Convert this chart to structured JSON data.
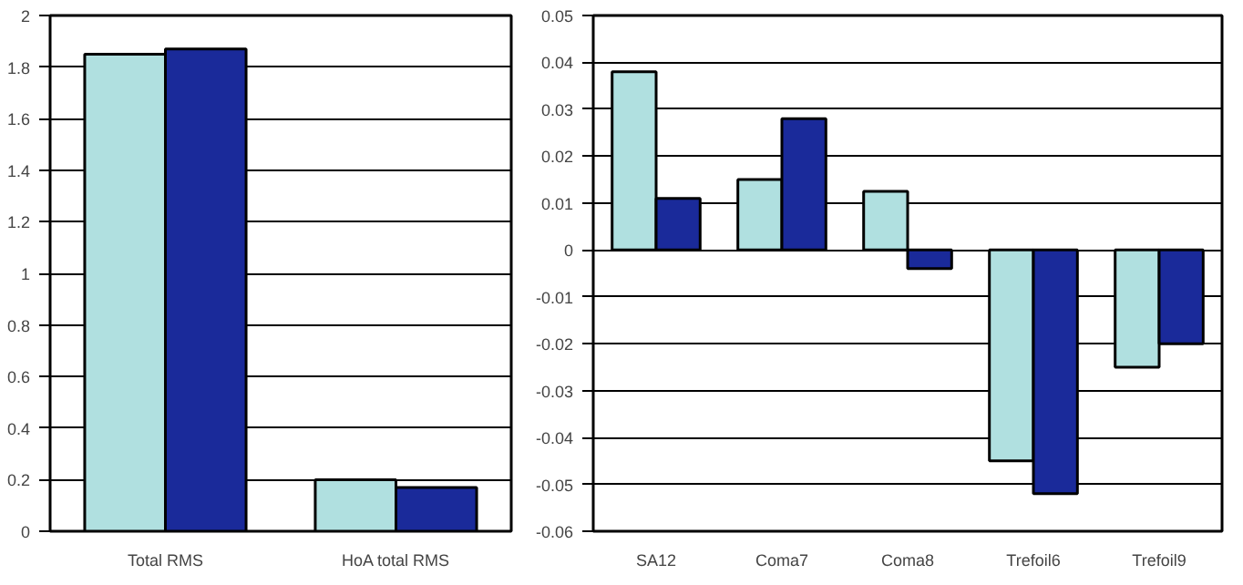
{
  "chart_data": [
    {
      "type": "bar",
      "categories": [
        "Total RMS",
        "HoA total RMS"
      ],
      "series": [
        {
          "color": "#b0e0e0",
          "values": [
            1.85,
            0.2
          ]
        },
        {
          "color": "#1a2a9a",
          "values": [
            1.87,
            0.17
          ]
        }
      ],
      "ylim": [
        0,
        2
      ],
      "yticks": [
        0,
        0.2,
        0.4,
        0.6,
        0.8,
        1,
        1.2,
        1.4,
        1.6,
        1.8,
        2
      ],
      "grid": "y"
    },
    {
      "type": "bar",
      "categories": [
        "SA12",
        "Coma7",
        "Coma8",
        "Trefoil6",
        "Trefoil9"
      ],
      "series": [
        {
          "color": "#b0e0e0",
          "values": [
            0.038,
            0.015,
            0.0125,
            -0.045,
            -0.025
          ]
        },
        {
          "color": "#1a2a9a",
          "values": [
            0.011,
            0.028,
            -0.004,
            -0.052,
            -0.02
          ]
        }
      ],
      "ylim": [
        -0.06,
        0.05
      ],
      "yticks": [
        -0.06,
        -0.05,
        -0.04,
        -0.03,
        -0.02,
        -0.01,
        0,
        0.01,
        0.02,
        0.03,
        0.04,
        0.05
      ],
      "grid": "y"
    }
  ]
}
